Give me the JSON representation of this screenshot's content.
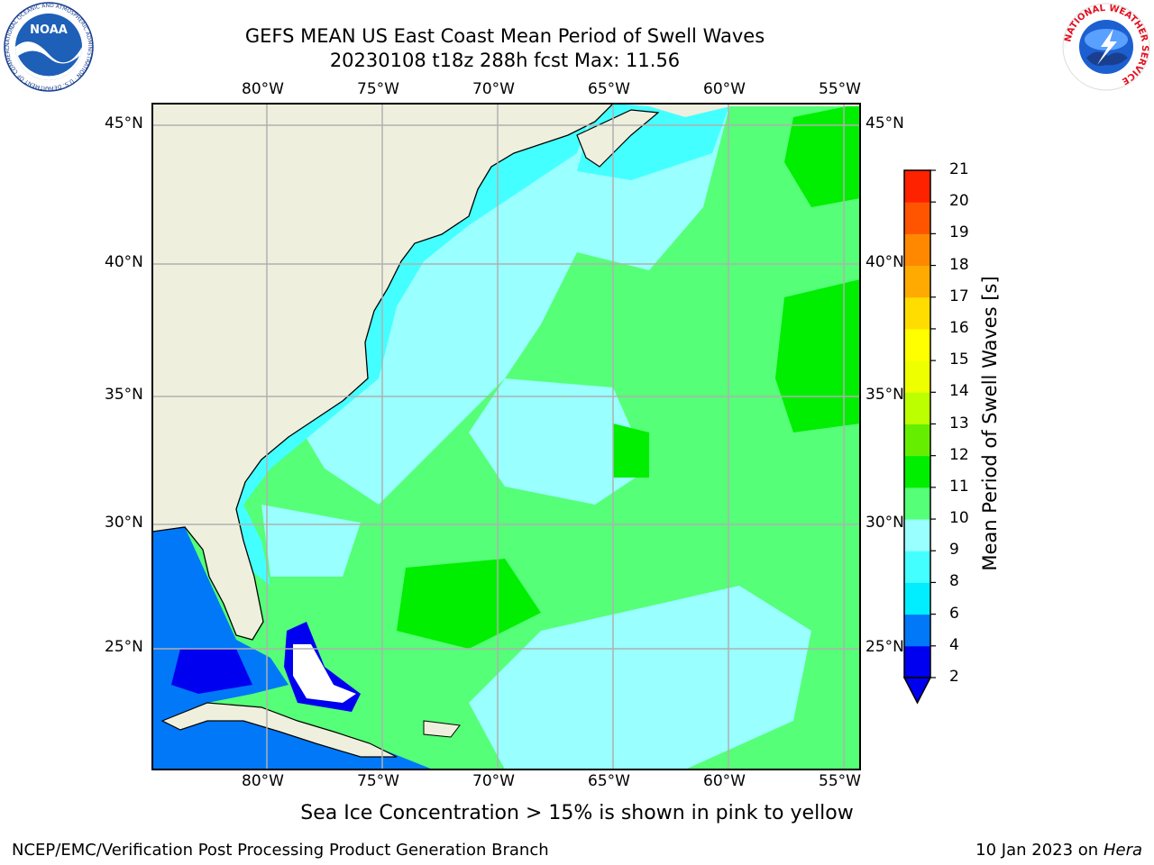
{
  "header": {
    "title_line1": "GEFS MEAN US East Coast Mean Period of Swell Waves",
    "title_line2": "20230108 t18z 288h fcst   Max: 11.56"
  },
  "logos": {
    "noaa_text": "NOAA",
    "noaa_ring_text": "NATIONAL OCEANIC AND ATMOSPHERIC ADMINISTRATION · U.S. DEPARTMENT OF COMMERCE",
    "nws_ring_text": "NATIONAL WEATHER SERVICE"
  },
  "map": {
    "lon_labels": [
      "80°W",
      "75°W",
      "70°W",
      "65°W",
      "60°W",
      "55°W"
    ],
    "lat_labels": [
      "45°N",
      "40°N",
      "35°N",
      "30°N",
      "25°N"
    ]
  },
  "colorbar": {
    "label": "Mean Period of Swell Waves [s]",
    "levels": [
      "2",
      "4",
      "6",
      "8",
      "9",
      "10",
      "11",
      "12",
      "13",
      "14",
      "15",
      "16",
      "17",
      "18",
      "19",
      "20",
      "21"
    ],
    "colors": [
      "#0000f0",
      "#0078f8",
      "#00eeff",
      "#44ffff",
      "#99ffff",
      "#55ff77",
      "#00ee00",
      "#66ee00",
      "#bbff00",
      "#eeff00",
      "#ffff00",
      "#ffdd00",
      "#ffaa00",
      "#ff8800",
      "#ff5500",
      "#ff2200"
    ],
    "under_color": "#0000f0"
  },
  "footer": {
    "sea_ice_note": "Sea Ice Concentration > 15% is shown in pink to yellow",
    "credit_left": "NCEP/EMC/Verification Post Processing Product Generation Branch",
    "date_text": "10 Jan 2023 on",
    "machine": "Hera"
  }
}
